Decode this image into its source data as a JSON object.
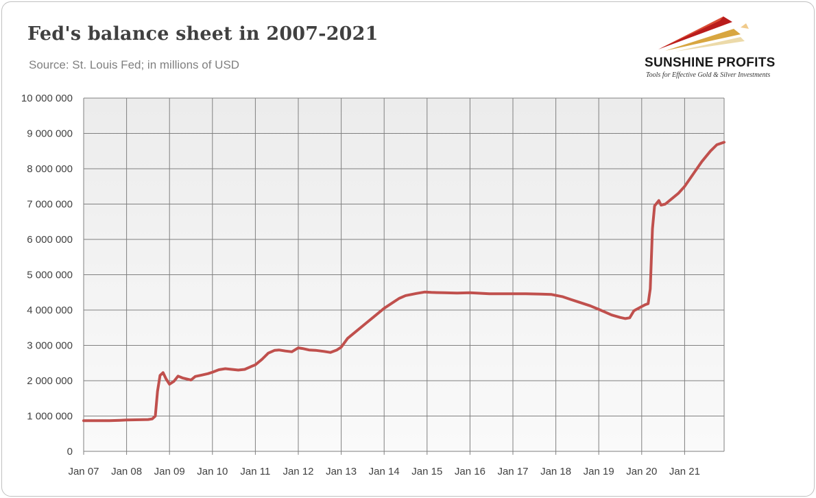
{
  "header": {
    "title": "Fed's balance sheet in 2007-2021",
    "subtitle": "Source: St. Louis Fed; in millions of USD"
  },
  "logo": {
    "name": "SUNSHINE PROFITS",
    "tagline": "Tools for Effective Gold & Silver Investments"
  },
  "colors": {
    "series": "#c0504d",
    "plot_bg_top": "#ececec",
    "plot_bg_bottom": "#fafafa",
    "grid": "#7f7f7f"
  },
  "chart_data": {
    "type": "line",
    "title": "Fed's balance sheet in 2007-2021",
    "subtitle": "Source: St. Louis Fed; in millions of USD",
    "xlabel": "",
    "ylabel": "",
    "ylim": [
      0,
      10000000
    ],
    "xlim": [
      2007.0,
      2021.92
    ],
    "grid": true,
    "legend": "none",
    "y_ticks": [
      0,
      1000000,
      2000000,
      3000000,
      4000000,
      5000000,
      6000000,
      7000000,
      8000000,
      9000000,
      10000000
    ],
    "y_tick_labels": [
      "0",
      "1 000 000",
      "2 000 000",
      "3 000 000",
      "4 000 000",
      "5 000 000",
      "6 000 000",
      "7 000 000",
      "8 000 000",
      "9 000 000",
      "10 000 000"
    ],
    "x_ticks": [
      2007,
      2008,
      2009,
      2010,
      2011,
      2012,
      2013,
      2014,
      2015,
      2016,
      2017,
      2018,
      2019,
      2020,
      2021
    ],
    "x_tick_labels": [
      "Jan 07",
      "Jan 08",
      "Jan 09",
      "Jan 10",
      "Jan 11",
      "Jan 12",
      "Jan 13",
      "Jan 14",
      "Jan 15",
      "Jan 16",
      "Jan 17",
      "Jan 18",
      "Jan 19",
      "Jan 20",
      "Jan 21"
    ],
    "series": [
      {
        "x": [
          2007.0,
          2007.3,
          2007.6,
          2007.85,
          2008.0,
          2008.3,
          2008.5,
          2008.6,
          2008.67,
          2008.72,
          2008.78,
          2008.85,
          2008.92,
          2009.0,
          2009.1,
          2009.2,
          2009.3,
          2009.5,
          2009.6,
          2009.75,
          2009.9,
          2010.0,
          2010.15,
          2010.3,
          2010.45,
          2010.6,
          2010.75,
          2010.9,
          2011.0,
          2011.15,
          2011.3,
          2011.45,
          2011.55,
          2011.7,
          2011.85,
          2012.0,
          2012.1,
          2012.25,
          2012.4,
          2012.6,
          2012.75,
          2012.9,
          2013.0,
          2013.15,
          2013.35,
          2013.6,
          2013.75,
          2014.0,
          2014.25,
          2014.35,
          2014.5,
          2014.75,
          2014.95,
          2015.1,
          2015.4,
          2015.7,
          2016.0,
          2016.3,
          2016.45,
          2016.6,
          2016.9,
          2017.1,
          2017.3,
          2017.65,
          2017.9,
          2018.15,
          2018.35,
          2018.55,
          2018.8,
          2019.0,
          2019.15,
          2019.3,
          2019.5,
          2019.62,
          2019.72,
          2019.82,
          2020.0,
          2020.08,
          2020.15,
          2020.2,
          2020.25,
          2020.3,
          2020.4,
          2020.45,
          2020.55,
          2020.7,
          2020.85,
          2021.0,
          2021.2,
          2021.4,
          2021.6,
          2021.75,
          2021.92
        ],
        "values": [
          870000,
          870000,
          870000,
          880000,
          890000,
          895000,
          900000,
          920000,
          1000000,
          1700000,
          2150000,
          2230000,
          2050000,
          1900000,
          1980000,
          2130000,
          2080000,
          2020000,
          2120000,
          2160000,
          2200000,
          2240000,
          2310000,
          2340000,
          2320000,
          2300000,
          2320000,
          2400000,
          2450000,
          2600000,
          2780000,
          2860000,
          2870000,
          2840000,
          2820000,
          2930000,
          2910000,
          2870000,
          2860000,
          2830000,
          2800000,
          2870000,
          2950000,
          3200000,
          3400000,
          3650000,
          3800000,
          4050000,
          4250000,
          4330000,
          4410000,
          4470000,
          4510000,
          4500000,
          4490000,
          4480000,
          4490000,
          4470000,
          4460000,
          4460000,
          4460000,
          4460000,
          4460000,
          4450000,
          4440000,
          4380000,
          4300000,
          4220000,
          4120000,
          4020000,
          3940000,
          3860000,
          3790000,
          3760000,
          3780000,
          3980000,
          4100000,
          4150000,
          4180000,
          4600000,
          6300000,
          6950000,
          7100000,
          6970000,
          7000000,
          7150000,
          7300000,
          7500000,
          7850000,
          8200000,
          8500000,
          8680000,
          8750000
        ]
      }
    ]
  }
}
